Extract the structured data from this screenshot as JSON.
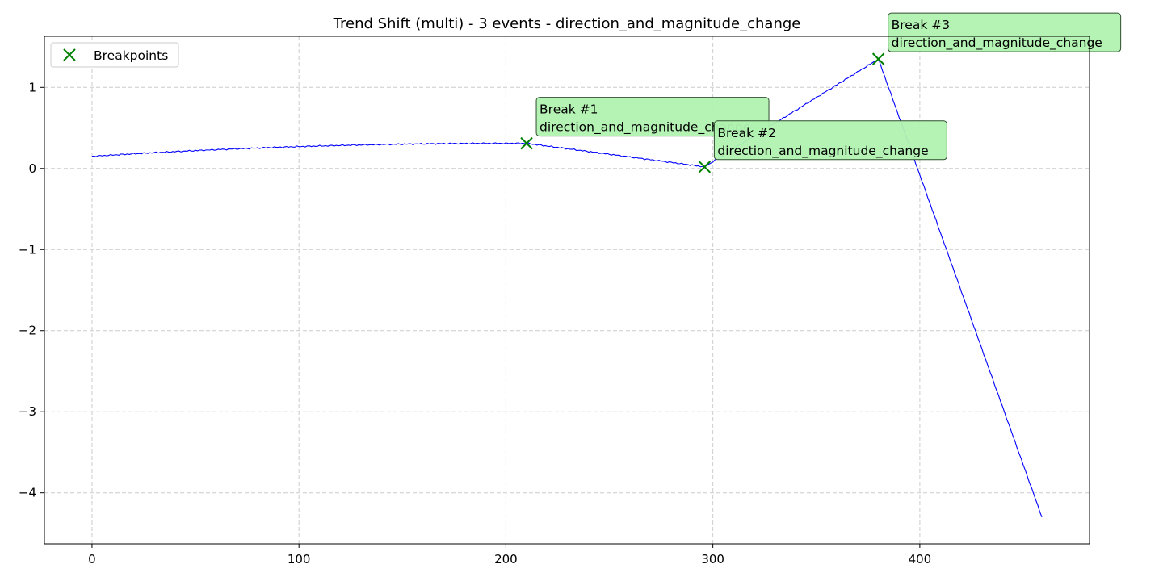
{
  "chart_data": {
    "type": "line",
    "title": "Trend Shift (multi) - 3 events - direction_and_magnitude_change",
    "xlabel": "",
    "ylabel": "",
    "xlim": [
      -23,
      482
    ],
    "ylim": [
      -4.63,
      1.63
    ],
    "xticks": [
      0,
      100,
      200,
      300,
      400
    ],
    "yticks": [
      1,
      0,
      -1,
      -2,
      -3,
      -4
    ],
    "ytick_labels": [
      "1",
      "0",
      "−1",
      "−2",
      "−3",
      "−4"
    ],
    "grid": true,
    "legend": {
      "placement": "top-left",
      "entries": [
        "Breakpoints"
      ]
    },
    "series": [
      {
        "kind": "line",
        "color": "#0000ff",
        "segments": [
          {
            "x_start": 0,
            "x_end": 210,
            "vertex": 200,
            "y_start": 0.15,
            "y_peak": 0.31,
            "y_end": 0.31
          },
          {
            "x_start": 210,
            "x_end": 296,
            "y_start": 0.31,
            "y_end": 0.02
          },
          {
            "x_start": 296,
            "x_end": 380,
            "y_start": 0.02,
            "y_end": 1.35
          },
          {
            "x_start": 380,
            "x_end": 459,
            "y_start": 1.35,
            "y_end": -4.3
          }
        ],
        "noise_amplitude": 0.006
      },
      {
        "name": "Breakpoints",
        "kind": "scatter",
        "marker": "x",
        "color": "#008000",
        "points": [
          {
            "x": 210,
            "y": 0.31
          },
          {
            "x": 296,
            "y": 0.02
          },
          {
            "x": 380,
            "y": 1.35
          }
        ]
      }
    ],
    "annotations": [
      {
        "line1": "Break #1",
        "line2": "direction_and_magnitude_change",
        "x": 210,
        "y": 0.31
      },
      {
        "line1": "Break #2",
        "line2": "direction_and_magnitude_change",
        "x": 296,
        "y": 0.02
      },
      {
        "line1": "Break #3",
        "line2": "direction_and_magnitude_change",
        "x": 380,
        "y": 1.35
      }
    ],
    "colors": {
      "line": "#0000ff",
      "marker": "#008000",
      "annotation_fill": "#b0f2b0",
      "annotation_edge": "#2f4f2f",
      "grid": "#cccccc"
    }
  }
}
